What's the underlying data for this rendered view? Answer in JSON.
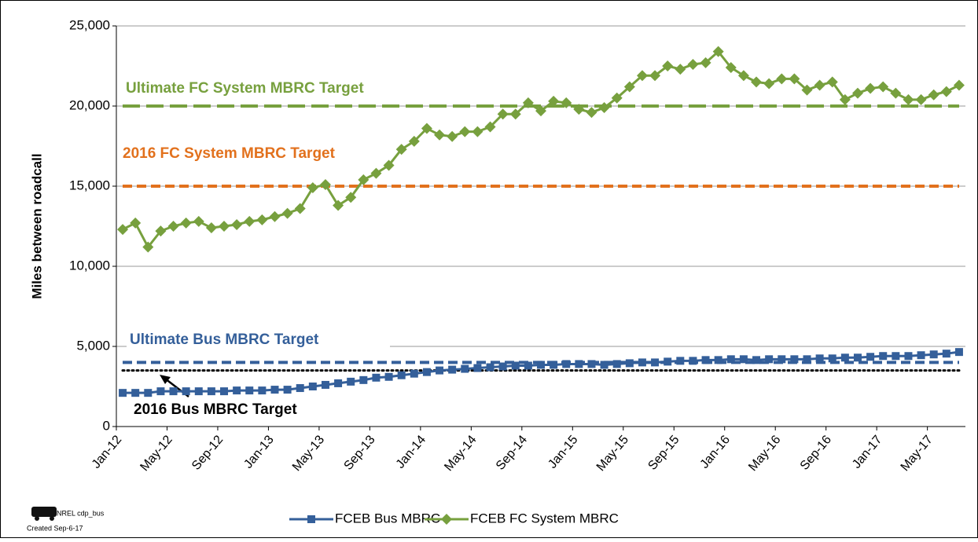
{
  "chart_data": {
    "type": "line",
    "y_label": "Miles between roadcall",
    "categories": [
      "Jan-12",
      null,
      null,
      null,
      "May-12",
      null,
      null,
      null,
      "Sep-12",
      null,
      null,
      null,
      "Jan-13",
      null,
      null,
      null,
      "May-13",
      null,
      null,
      null,
      "Sep-13",
      null,
      null,
      null,
      "Jan-14",
      null,
      null,
      null,
      "May-14",
      null,
      null,
      null,
      "Sep-14",
      null,
      null,
      null,
      "Jan-15",
      null,
      null,
      null,
      "May-15",
      null,
      null,
      null,
      "Sep-15",
      null,
      null,
      null,
      "Jan-16",
      null,
      null,
      null,
      "May-16",
      null,
      null,
      null,
      "Sep-16",
      null,
      null,
      null,
      "Jan-17",
      null,
      null,
      null,
      "May-17",
      null,
      null
    ],
    "series": [
      {
        "name": "FCEB Bus MBRC",
        "color": "#345f9a",
        "marker": "square",
        "values": [
          2100,
          2100,
          2100,
          2200,
          2200,
          2200,
          2200,
          2200,
          2200,
          2250,
          2250,
          2250,
          2300,
          2300,
          2400,
          2500,
          2600,
          2700,
          2800,
          2900,
          3050,
          3100,
          3200,
          3300,
          3400,
          3500,
          3550,
          3600,
          3650,
          3700,
          3750,
          3800,
          3800,
          3850,
          3850,
          3900,
          3900,
          3900,
          3850,
          3900,
          3950,
          4000,
          4000,
          4050,
          4100,
          4100,
          4150,
          4150,
          4200,
          4200,
          4150,
          4200,
          4200,
          4200,
          4200,
          4250,
          4250,
          4300,
          4300,
          4350,
          4400,
          4400,
          4400,
          4450,
          4500,
          4550,
          4650
        ]
      },
      {
        "name": "FCEB FC System MBRC",
        "color": "#77a03e",
        "marker": "diamond",
        "values": [
          12300,
          12700,
          11200,
          12200,
          12500,
          12700,
          12800,
          12400,
          12500,
          12600,
          12800,
          12900,
          13100,
          13300,
          13600,
          14900,
          15100,
          13800,
          14300,
          15400,
          15800,
          16300,
          17300,
          17800,
          18600,
          18200,
          18100,
          18400,
          18400,
          18700,
          19500,
          19500,
          20200,
          19700,
          20300,
          20200,
          19800,
          19600,
          19900,
          20500,
          21200,
          21900,
          21900,
          22500,
          22300,
          22600,
          22700,
          23400,
          22400,
          21900,
          21500,
          21400,
          21700,
          21700,
          21000,
          21300,
          21500,
          20400,
          20800,
          21100,
          21200,
          20800,
          20400,
          20400,
          20700,
          20900,
          21300
        ]
      }
    ],
    "reference_lines": [
      {
        "label": "Ultimate FC System MBRC Target",
        "value": 20000,
        "color": "#77a03e",
        "style": "long-dash"
      },
      {
        "label": "2016 FC System MBRC Target",
        "value": 15000,
        "color": "#e2711d",
        "style": "dash"
      },
      {
        "label": "Ultimate Bus MBRC Target",
        "value": 4000,
        "color": "#345f9a",
        "style": "dash"
      },
      {
        "label": "2016 Bus MBRC Target",
        "value": 3500,
        "color": "#000000",
        "style": "dot"
      }
    ],
    "ylim": [
      0,
      25000
    ],
    "yticks": [
      0,
      {
        "value": 5000,
        "label": "5,000"
      },
      {
        "value": 10000,
        "label": "10,000"
      },
      {
        "value": 15000,
        "label": "15,000"
      },
      {
        "value": 20000,
        "label": "20,000"
      },
      {
        "value": 25000,
        "label": "25,000"
      }
    ],
    "grid": true,
    "legend": "bottom",
    "footer": {
      "source": "NREL cdp_bus",
      "created": "Created Sep-6-17"
    }
  }
}
